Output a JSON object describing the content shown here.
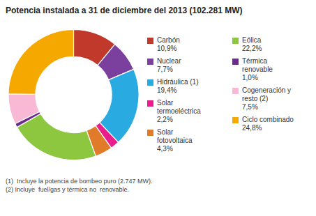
{
  "chart_data": {
    "type": "pie",
    "title": "Potencia instalada a 31 de diciembre del 2013",
    "subtitle": "(102.281 MW)",
    "categories": [
      "Carbón",
      "Nuclear",
      "Hidráulica (1)",
      "Solar\ntermoeléctrica",
      "Solar\nfotovoltaica",
      "Eólica",
      "Térmica\nrenovable",
      "Cogeneración y\nresto (2)",
      "Ciclo combinado"
    ],
    "values": [
      10.9,
      7.7,
      19.4,
      2.2,
      4.3,
      22.2,
      1.0,
      7.5,
      24.8
    ],
    "value_labels": [
      "10,9%",
      "7,7%",
      "19,4%",
      "2,2%",
      "4,3%",
      "22,2%",
      "1,0%",
      "7,5%",
      "24,8%"
    ],
    "colors": [
      "#c0392b",
      "#7b3f9e",
      "#29abe2",
      "#e91e8c",
      "#e07b2a",
      "#8dc63f",
      "#6b2d8b",
      "#f9b8d3",
      "#f5a800"
    ],
    "annotations": [
      "(1)  Incluye la potencia de bombeo puro (2.747 MW).",
      "(2) Incluye  fuel/gas y térmica no  renovable."
    ],
    "legend": "right"
  }
}
